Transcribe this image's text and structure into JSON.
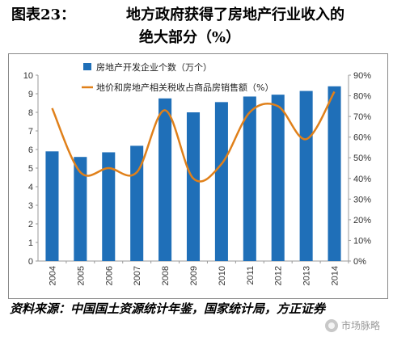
{
  "header": {
    "figure_label": "图表23：",
    "title_line1": "地方政府获得了房地产行业收入的",
    "title_line2": "绝大部分（%）"
  },
  "source": "资料来源：中国国土资源统计年鉴，国家统计局，方正证券",
  "watermark": "市场脉略",
  "chart_data": {
    "type": "bar+line",
    "categories": [
      "2004",
      "2005",
      "2006",
      "2007",
      "2008",
      "2009",
      "2010",
      "2011",
      "2012",
      "2013",
      "2014"
    ],
    "series": [
      {
        "name": "房地产开发企业个数（万个）",
        "type": "bar",
        "axis": "left",
        "color": "#1f6fb8",
        "values": [
          5.9,
          5.6,
          5.85,
          6.2,
          8.75,
          8.0,
          8.55,
          8.85,
          8.95,
          9.15,
          9.4
        ]
      },
      {
        "name": "地价和房地产相关税收占商品房销售额（%）",
        "type": "line",
        "axis": "right",
        "color": "#e0801a",
        "values": [
          74,
          43,
          45,
          43,
          73,
          40,
          47,
          72,
          75,
          59,
          82
        ]
      }
    ],
    "left_axis": {
      "min": 0,
      "max": 10,
      "ticks": [
        "0",
        "1",
        "2",
        "3",
        "4",
        "5",
        "6",
        "7",
        "8",
        "9",
        "10"
      ]
    },
    "right_axis": {
      "min": 0,
      "max": 90,
      "ticks": [
        "0%",
        "10%",
        "20%",
        "30%",
        "40%",
        "50%",
        "60%",
        "70%",
        "80%",
        "90%"
      ]
    },
    "grid": false,
    "legend_position": "top-left"
  }
}
